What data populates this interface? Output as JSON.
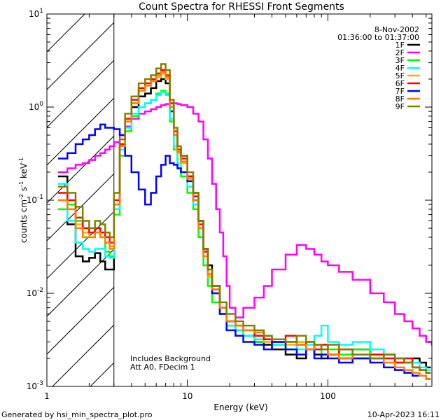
{
  "chart_data": {
    "type": "line",
    "title": "Count Spectra for RHESSI Front Segments",
    "xlabel": "Energy (keV)",
    "ylabel": "counts cm^-2 s^-1 keV^-1",
    "ylabel_parts": {
      "base": "counts cm",
      "exp1": "-2",
      "mid1": " s",
      "exp2": "-1",
      "mid2": " keV",
      "exp3": "-1"
    },
    "xscale": "log",
    "yscale": "log",
    "xlim": [
      1,
      550
    ],
    "ylim": [
      0.001,
      10
    ],
    "x_ticks": [
      {
        "value": 1,
        "label": "1"
      },
      {
        "value": 10,
        "label": "10"
      },
      {
        "value": 100,
        "label": "100"
      }
    ],
    "y_ticks": [
      {
        "value": 0.001,
        "base": "10",
        "exp": "-3"
      },
      {
        "value": 0.01,
        "base": "10",
        "exp": "-2"
      },
      {
        "value": 0.1,
        "base": "10",
        "exp": "-1"
      },
      {
        "value": 1,
        "base": "10",
        "exp": "0"
      },
      {
        "value": 10,
        "base": "10",
        "exp": "1"
      }
    ],
    "hatched_region_keV": [
      1,
      3
    ],
    "date": "8-Nov-2002",
    "time_range": "01:36:00 to 01:37:00",
    "annotations": [
      "Includes Background",
      "Att A0, FDecim 1"
    ],
    "footer_left": "Generated by hsi_min_spectra_plot.pro",
    "footer_right": "10-Apr-2023 16:11",
    "series": [
      {
        "name": "1F",
        "color": "#000000",
        "x": [
          1.2,
          1.4,
          1.6,
          1.8,
          2.0,
          2.2,
          2.4,
          2.6,
          2.8,
          3.0,
          3.3,
          3.6,
          4.0,
          4.5,
          5.0,
          5.5,
          6.0,
          6.5,
          7.0,
          7.5,
          8.0,
          8.5,
          9.0,
          10,
          11,
          12,
          13,
          14,
          15,
          17,
          19,
          22,
          25,
          30,
          35,
          40,
          50,
          60,
          70,
          80,
          90,
          100,
          120,
          150,
          200,
          250,
          300,
          350,
          400,
          450,
          500
        ],
        "values": [
          0.18,
          0.055,
          0.025,
          0.022,
          0.024,
          0.027,
          0.022,
          0.018,
          0.018,
          0.09,
          0.4,
          0.7,
          1.0,
          1.3,
          1.4,
          1.6,
          1.9,
          2.0,
          1.8,
          0.9,
          0.5,
          0.35,
          0.3,
          0.18,
          0.12,
          0.06,
          0.03,
          0.02,
          0.012,
          0.007,
          0.005,
          0.004,
          0.0035,
          0.003,
          0.0028,
          0.0025,
          0.0022,
          0.002,
          0.0025,
          0.0022,
          0.002,
          0.0022,
          0.002,
          0.0025,
          0.002,
          0.0022,
          0.002,
          0.0018,
          0.002,
          0.0018,
          0.0016
        ]
      },
      {
        "name": "2F",
        "color": "#ff00ff",
        "x": [
          1.2,
          1.4,
          1.6,
          1.8,
          2.0,
          2.2,
          2.4,
          2.6,
          2.8,
          3.0,
          3.3,
          3.6,
          4.0,
          4.5,
          5.0,
          5.5,
          6.0,
          6.5,
          7.0,
          7.5,
          8.0,
          8.5,
          9.0,
          10,
          11,
          12,
          13,
          14,
          15,
          16,
          17,
          18,
          19,
          20,
          22,
          25,
          30,
          35,
          40,
          50,
          60,
          70,
          80,
          90,
          100,
          120,
          150,
          200,
          250,
          300,
          350,
          400,
          450,
          500,
          550
        ],
        "values": [
          0.2,
          0.22,
          0.24,
          0.25,
          0.27,
          0.3,
          0.32,
          0.35,
          0.38,
          0.42,
          0.5,
          0.62,
          0.75,
          0.85,
          0.9,
          0.95,
          1.0,
          1.05,
          1.08,
          1.1,
          1.1,
          1.08,
          1.05,
          1.0,
          0.85,
          0.7,
          0.45,
          0.28,
          0.15,
          0.08,
          0.045,
          0.025,
          0.012,
          0.007,
          0.0055,
          0.007,
          0.009,
          0.012,
          0.018,
          0.026,
          0.033,
          0.03,
          0.026,
          0.022,
          0.02,
          0.017,
          0.014,
          0.01,
          0.008,
          0.006,
          0.005,
          0.0042,
          0.0035,
          0.003,
          0.0028
        ]
      },
      {
        "name": "3F",
        "color": "#00ff00",
        "x": [
          1.2,
          1.4,
          1.6,
          1.8,
          2.0,
          2.2,
          2.4,
          2.6,
          2.8,
          3.0,
          3.3,
          3.6,
          4.0,
          4.5,
          5.0,
          5.5,
          6.0,
          6.5,
          7.0,
          7.5,
          8.0,
          8.5,
          9.0,
          10,
          11,
          12,
          13,
          14,
          15,
          17,
          19,
          22,
          25,
          30,
          35,
          40,
          50,
          60,
          70,
          80,
          90,
          100,
          120,
          150,
          200,
          250,
          300,
          350,
          400,
          450,
          500
        ],
        "values": [
          0.08,
          0.09,
          0.06,
          0.04,
          0.04,
          0.045,
          0.04,
          0.028,
          0.025,
          0.07,
          0.3,
          0.55,
          0.8,
          1.0,
          1.1,
          1.2,
          1.4,
          1.5,
          1.4,
          0.7,
          0.35,
          0.22,
          0.18,
          0.12,
          0.08,
          0.04,
          0.02,
          0.012,
          0.008,
          0.006,
          0.0045,
          0.004,
          0.0035,
          0.003,
          0.0032,
          0.0028,
          0.0025,
          0.003,
          0.0025,
          0.0028,
          0.0022,
          0.0025,
          0.0022,
          0.0025,
          0.002,
          0.0022,
          0.0018,
          0.0018,
          0.0016,
          0.0015,
          0.0014
        ]
      },
      {
        "name": "4F",
        "color": "#00ffff",
        "x": [
          1.2,
          1.4,
          1.6,
          1.8,
          2.0,
          2.2,
          2.4,
          2.6,
          2.8,
          3.0,
          3.3,
          3.6,
          4.0,
          4.5,
          5.0,
          5.5,
          6.0,
          6.5,
          7.0,
          7.5,
          8.0,
          8.5,
          9.0,
          10,
          11,
          12,
          13,
          14,
          15,
          17,
          19,
          22,
          25,
          30,
          35,
          40,
          50,
          60,
          70,
          80,
          90,
          100,
          120,
          150,
          200,
          250,
          300,
          350,
          400,
          450,
          500
        ],
        "values": [
          0.15,
          0.06,
          0.035,
          0.03,
          0.028,
          0.03,
          0.03,
          0.025,
          0.024,
          0.08,
          0.35,
          0.6,
          0.85,
          1.0,
          1.1,
          1.2,
          1.35,
          1.45,
          1.35,
          0.75,
          0.38,
          0.25,
          0.2,
          0.14,
          0.09,
          0.05,
          0.025,
          0.015,
          0.01,
          0.006,
          0.0045,
          0.004,
          0.0035,
          0.0032,
          0.003,
          0.0028,
          0.003,
          0.0025,
          0.0028,
          0.0035,
          0.0045,
          0.003,
          0.0028,
          0.003,
          0.0025,
          0.0022,
          0.002,
          0.0018,
          0.0018,
          0.0016,
          0.0015
        ]
      },
      {
        "name": "5F",
        "color": "#ffb000",
        "x": [
          1.2,
          1.4,
          1.6,
          1.8,
          2.0,
          2.2,
          2.4,
          2.6,
          2.8,
          3.0,
          3.3,
          3.6,
          4.0,
          4.5,
          5.0,
          5.5,
          6.0,
          6.5,
          7.0,
          7.5,
          8.0,
          8.5,
          9.0,
          10,
          11,
          12,
          13,
          14,
          15,
          17,
          19,
          22,
          25,
          30,
          35,
          40,
          50,
          60,
          70,
          80,
          90,
          100,
          120,
          150,
          200,
          250,
          300,
          350,
          400,
          450,
          500
        ],
        "values": [
          0.1,
          0.08,
          0.055,
          0.045,
          0.04,
          0.045,
          0.04,
          0.035,
          0.032,
          0.09,
          0.38,
          0.7,
          1.1,
          1.5,
          1.7,
          1.9,
          2.1,
          2.3,
          2.0,
          1.0,
          0.5,
          0.32,
          0.25,
          0.16,
          0.1,
          0.05,
          0.025,
          0.015,
          0.01,
          0.006,
          0.005,
          0.0045,
          0.004,
          0.0035,
          0.003,
          0.0032,
          0.0028,
          0.003,
          0.0025,
          0.0028,
          0.0025,
          0.0022,
          0.0025,
          0.002,
          0.0022,
          0.002,
          0.0018,
          0.002,
          0.0016,
          0.0015,
          0.0014
        ]
      },
      {
        "name": "6F",
        "color": "#ff0000",
        "x": [
          1.2,
          1.4,
          1.6,
          1.8,
          2.0,
          2.2,
          2.4,
          2.6,
          2.8,
          3.0,
          3.3,
          3.6,
          4.0,
          4.5,
          5.0,
          5.5,
          6.0,
          6.5,
          7.0,
          7.5,
          8.0,
          8.5,
          9.0,
          10,
          11,
          12,
          13,
          14,
          15,
          17,
          19,
          22,
          25,
          30,
          35,
          40,
          50,
          60,
          70,
          80,
          90,
          100,
          120,
          150,
          200,
          250,
          300,
          350,
          400,
          450,
          500
        ],
        "values": [
          0.12,
          0.1,
          0.065,
          0.05,
          0.045,
          0.05,
          0.045,
          0.04,
          0.035,
          0.1,
          0.4,
          0.75,
          1.2,
          1.6,
          1.8,
          2.0,
          2.3,
          2.5,
          2.2,
          1.1,
          0.55,
          0.35,
          0.28,
          0.18,
          0.11,
          0.055,
          0.028,
          0.016,
          0.011,
          0.007,
          0.005,
          0.0045,
          0.004,
          0.0035,
          0.0032,
          0.003,
          0.0035,
          0.0028,
          0.003,
          0.0025,
          0.0028,
          0.0022,
          0.0025,
          0.002,
          0.0022,
          0.002,
          0.0018,
          0.002,
          0.0016,
          0.0015,
          0.0014
        ]
      },
      {
        "name": "7F",
        "color": "#0000ff",
        "x": [
          1.2,
          1.4,
          1.6,
          1.8,
          2.0,
          2.2,
          2.4,
          2.6,
          2.8,
          3.0,
          3.3,
          3.6,
          4.0,
          4.5,
          5.0,
          5.5,
          6.0,
          6.5,
          7.0,
          7.5,
          8.0,
          8.5,
          9.0,
          10,
          11,
          12,
          13,
          14,
          15,
          17,
          19,
          22,
          25,
          30,
          35,
          40,
          50,
          60,
          70,
          80,
          90,
          100,
          120,
          150,
          200,
          250,
          300,
          350,
          400,
          450,
          500
        ],
        "values": [
          0.28,
          0.32,
          0.4,
          0.45,
          0.5,
          0.58,
          0.65,
          0.6,
          0.6,
          0.58,
          0.5,
          0.3,
          0.2,
          0.13,
          0.09,
          0.12,
          0.18,
          0.24,
          0.3,
          0.25,
          0.24,
          0.22,
          0.2,
          0.16,
          0.1,
          0.06,
          0.03,
          0.016,
          0.01,
          0.006,
          0.004,
          0.0035,
          0.003,
          0.0028,
          0.0025,
          0.003,
          0.0025,
          0.0022,
          0.0025,
          0.002,
          0.0022,
          0.002,
          0.0018,
          0.002,
          0.0018,
          0.0016,
          0.0015,
          0.0014,
          0.0013,
          0.0013,
          0.0012
        ]
      },
      {
        "name": "8F",
        "color": "#ff7f00",
        "x": [
          1.2,
          1.4,
          1.6,
          1.8,
          2.0,
          2.2,
          2.4,
          2.6,
          2.8,
          3.0,
          3.3,
          3.6,
          4.0,
          4.5,
          5.0,
          5.5,
          6.0,
          6.5,
          7.0,
          7.5,
          8.0,
          8.5,
          9.0,
          10,
          11,
          12,
          13,
          14,
          15,
          17,
          19,
          22,
          25,
          30,
          35,
          40,
          50,
          60,
          70,
          80,
          90,
          100,
          120,
          150,
          200,
          250,
          300,
          350,
          400,
          450,
          500
        ],
        "values": [
          0.1,
          0.08,
          0.05,
          0.04,
          0.04,
          0.045,
          0.04,
          0.035,
          0.03,
          0.09,
          0.38,
          0.7,
          1.1,
          1.5,
          1.7,
          1.9,
          2.2,
          2.4,
          2.1,
          1.0,
          0.5,
          0.33,
          0.26,
          0.17,
          0.1,
          0.05,
          0.025,
          0.016,
          0.011,
          0.007,
          0.005,
          0.0045,
          0.004,
          0.0038,
          0.0035,
          0.0032,
          0.003,
          0.0028,
          0.0025,
          0.0028,
          0.0025,
          0.0022,
          0.002,
          0.0022,
          0.002,
          0.0018,
          0.0016,
          0.0015,
          0.0014,
          0.0013,
          0.0012
        ]
      },
      {
        "name": "9F",
        "color": "#808000",
        "x": [
          1.2,
          1.4,
          1.6,
          1.8,
          2.0,
          2.2,
          2.4,
          2.6,
          2.8,
          3.0,
          3.3,
          3.6,
          4.0,
          4.5,
          5.0,
          5.5,
          6.0,
          6.5,
          7.0,
          7.5,
          8.0,
          8.5,
          9.0,
          10,
          11,
          12,
          13,
          14,
          15,
          17,
          19,
          22,
          25,
          30,
          35,
          40,
          50,
          60,
          70,
          80,
          90,
          100,
          120,
          150,
          200,
          250,
          300,
          350,
          400,
          450,
          500
        ],
        "values": [
          0.14,
          0.12,
          0.085,
          0.06,
          0.05,
          0.06,
          0.055,
          0.045,
          0.04,
          0.12,
          0.45,
          0.85,
          1.3,
          1.8,
          2.0,
          2.2,
          2.6,
          2.9,
          2.5,
          1.2,
          0.6,
          0.38,
          0.3,
          0.2,
          0.12,
          0.06,
          0.03,
          0.018,
          0.012,
          0.008,
          0.006,
          0.005,
          0.0045,
          0.004,
          0.0035,
          0.0032,
          0.003,
          0.0035,
          0.003,
          0.0028,
          0.0025,
          0.0028,
          0.0025,
          0.0022,
          0.002,
          0.0022,
          0.002,
          0.0018,
          0.0016,
          0.0015,
          0.0014
        ]
      }
    ]
  }
}
